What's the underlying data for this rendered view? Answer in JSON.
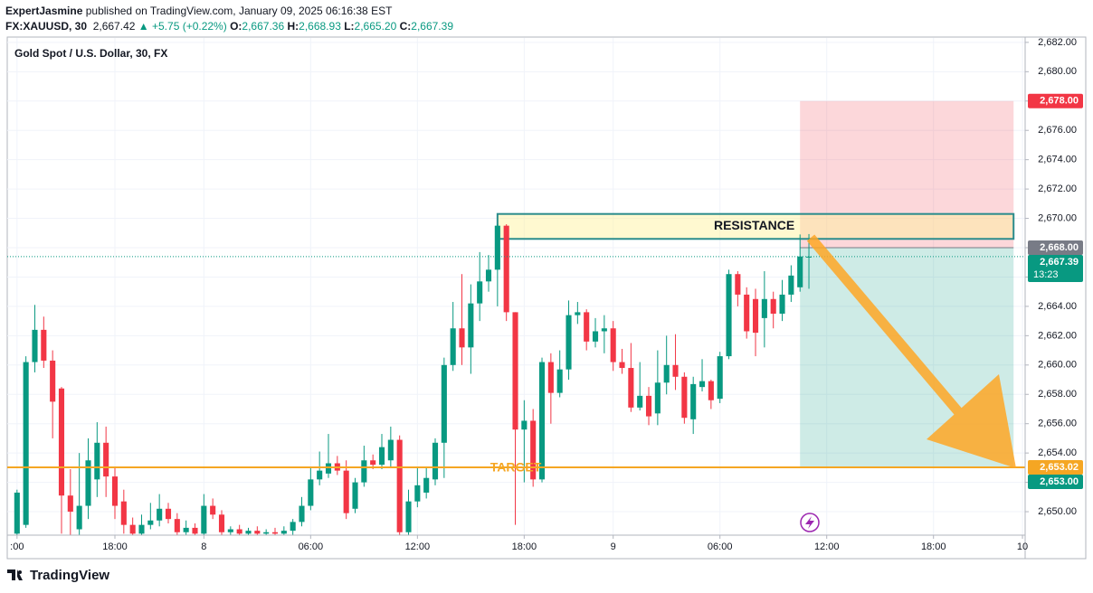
{
  "header": {
    "author": "ExpertJasmine",
    "published": "published on TradingView.com, January 09, 2025 06:16:38 EST",
    "symbol": "FX:XAUUSD, 30",
    "price": "2,667.42",
    "change": "+5.75 (+0.22%)",
    "ohlc": [
      {
        "label": "O:",
        "value": "2,667.36"
      },
      {
        "label": "H:",
        "value": "2,668.93"
      },
      {
        "label": "L:",
        "value": "2,665.20"
      },
      {
        "label": "C:",
        "value": "2,667.39"
      }
    ]
  },
  "logo": "TradingView",
  "chart_data": {
    "type": "candlestick",
    "title": "Gold Spot / U.S. Dollar, 30, FX",
    "up_color": "#089981",
    "down_color": "#f23645",
    "open": [
      2648.5,
      2649.1,
      2660.2,
      2662.4,
      2660.3,
      2658.4,
      2651.1,
      2648.8,
      2650.4,
      2652.2,
      2654.7,
      2652.4,
      2650.7,
      2649.1,
      2648.5,
      2649.1,
      2649.4,
      2650.2,
      2649.5,
      2648.6,
      2648.9,
      2648.5,
      2650.4,
      2649.8,
      2648.6,
      2648.8,
      2648.5,
      2648.7,
      2648.5,
      2648.6,
      2648.5,
      2648.7,
      2649.3,
      2650.4,
      2652.2,
      2652.6,
      2653.3,
      2652.8,
      2650.2,
      2652.0,
      2653.5,
      2653.2,
      2653.5,
      2654.9,
      2648.6,
      2650.7,
      2651.3,
      2652.2,
      2654.7,
      2660.0,
      2662.5,
      2661.2,
      2664.2,
      2665.7,
      2666.5,
      2669.5,
      2663.6,
      2655.6,
      2656.2,
      2652.2,
      2660.2,
      2658.1,
      2659.7,
      2663.4,
      2663.6,
      2661.6,
      2662.3,
      2662.5,
      2660.2,
      2659.8,
      2657.1,
      2657.9,
      2656.7,
      2658.8,
      2660.0,
      2659.2,
      2656.3,
      2658.5,
      2658.9,
      2657.7,
      2660.6,
      2666.2,
      2664.8,
      2664.5,
      2663.2,
      2664.5,
      2663.5,
      2664.8,
      2665.3,
      2667.36
    ],
    "high": [
      2651.5,
      2660.6,
      2664.1,
      2663.3,
      2661.0,
      2658.5,
      2652.9,
      2654.0,
      2655.0,
      2656.1,
      2655.8,
      2653.0,
      2651.5,
      2649.6,
      2649.8,
      2650.6,
      2651.2,
      2650.6,
      2649.9,
      2649.4,
      2649.2,
      2651.2,
      2650.9,
      2650.1,
      2649.0,
      2649.1,
      2648.9,
      2649.0,
      2648.8,
      2648.9,
      2649.0,
      2649.5,
      2651.0,
      2653.0,
      2654.1,
      2655.3,
      2653.8,
      2653.5,
      2652.3,
      2654.5,
      2653.9,
      2655.3,
      2655.8,
      2655.2,
      2651.5,
      2653.0,
      2653.0,
      2655.0,
      2660.5,
      2664.3,
      2666.2,
      2665.5,
      2667.7,
      2667.5,
      2669.6,
      2669.6,
      2663.6,
      2657.6,
      2657.0,
      2660.5,
      2660.8,
      2661.0,
      2664.4,
      2664.3,
      2663.8,
      2663.2,
      2663.4,
      2663.0,
      2661.1,
      2661.5,
      2660.2,
      2658.5,
      2661.0,
      2662.0,
      2662.1,
      2659.5,
      2659.2,
      2660.4,
      2659.0,
      2660.9,
      2666.5,
      2666.4,
      2665.3,
      2665.2,
      2666.4,
      2665.0,
      2665.8,
      2666.8,
      2668.9,
      2668.93
    ],
    "low": [
      2648.4,
      2648.9,
      2659.5,
      2659.8,
      2655.0,
      2648.5,
      2648.4,
      2648.4,
      2649.5,
      2651.0,
      2651.0,
      2649.5,
      2648.5,
      2648.4,
      2648.4,
      2648.8,
      2649.0,
      2649.2,
      2648.4,
      2648.4,
      2648.4,
      2648.4,
      2649.5,
      2648.4,
      2648.4,
      2648.4,
      2648.4,
      2648.4,
      2648.4,
      2648.4,
      2648.4,
      2648.4,
      2649.0,
      2650.1,
      2651.8,
      2652.3,
      2652.5,
      2649.5,
      2649.9,
      2651.7,
      2652.9,
      2652.9,
      2653.0,
      2648.4,
      2648.4,
      2650.3,
      2650.9,
      2651.8,
      2652.3,
      2659.6,
      2660.0,
      2659.4,
      2663.0,
      2665.0,
      2664.0,
      2663.0,
      2649.1,
      2652.0,
      2651.7,
      2652.0,
      2656.0,
      2657.8,
      2659.0,
      2662.8,
      2661.0,
      2661.2,
      2660.8,
      2659.6,
      2659.4,
      2656.8,
      2656.9,
      2655.9,
      2655.9,
      2658.0,
      2658.3,
      2656.0,
      2655.3,
      2658.2,
      2657.0,
      2657.4,
      2660.4,
      2664.0,
      2661.8,
      2660.6,
      2661.2,
      2662.5,
      2663.0,
      2664.3,
      2665.0,
      2665.2
    ],
    "close": [
      2651.3,
      2660.2,
      2662.4,
      2660.3,
      2657.5,
      2651.1,
      2650.0,
      2650.4,
      2653.5,
      2654.7,
      2652.4,
      2650.4,
      2649.1,
      2648.5,
      2649.1,
      2649.4,
      2650.2,
      2649.5,
      2648.6,
      2648.9,
      2648.5,
      2650.4,
      2649.8,
      2648.6,
      2648.8,
      2648.5,
      2648.7,
      2648.5,
      2648.6,
      2648.5,
      2648.7,
      2649.3,
      2650.4,
      2652.2,
      2652.8,
      2653.3,
      2652.8,
      2649.9,
      2652.0,
      2653.5,
      2653.2,
      2654.4,
      2654.9,
      2648.6,
      2650.7,
      2651.8,
      2652.3,
      2654.7,
      2660.0,
      2662.5,
      2661.2,
      2664.2,
      2665.7,
      2666.5,
      2669.5,
      2663.6,
      2655.6,
      2656.2,
      2652.2,
      2660.2,
      2658.1,
      2659.7,
      2663.4,
      2663.6,
      2661.6,
      2662.3,
      2662.5,
      2660.2,
      2659.8,
      2657.1,
      2657.9,
      2656.5,
      2658.8,
      2660.0,
      2659.2,
      2656.4,
      2658.7,
      2658.9,
      2657.6,
      2660.6,
      2666.2,
      2664.8,
      2662.3,
      2662.2,
      2664.5,
      2663.5,
      2664.8,
      2666.1,
      2667.4,
      2667.39
    ],
    "xlim": [
      -1.1,
      113.3
    ],
    "xticks": [
      {
        "value": 0,
        "label": ":00"
      },
      {
        "value": 11,
        "label": "18:00"
      },
      {
        "value": 21,
        "label": "8"
      },
      {
        "value": 33,
        "label": "06:00"
      },
      {
        "value": 45,
        "label": "12:00"
      },
      {
        "value": 57,
        "label": "18:00"
      },
      {
        "value": 67,
        "label": "9"
      },
      {
        "value": 79,
        "label": "06:00"
      },
      {
        "value": 91,
        "label": "12:00"
      },
      {
        "value": 103,
        "label": "18:00"
      },
      {
        "value": 113,
        "label": "10"
      }
    ],
    "ylim": [
      2648.4,
      2682.3
    ],
    "yticks": [
      {
        "value": 2650,
        "label": "2,650.00"
      },
      {
        "value": 2652,
        "label": "2,652.00"
      },
      {
        "value": 2654,
        "label": "2,654.00"
      },
      {
        "value": 2656,
        "label": "2,656.00"
      },
      {
        "value": 2658,
        "label": "2,658.00"
      },
      {
        "value": 2660,
        "label": "2,660.00"
      },
      {
        "value": 2662,
        "label": "2,662.00"
      },
      {
        "value": 2664,
        "label": "2,664.00"
      },
      {
        "value": 2666,
        "label": "2,666.00"
      },
      {
        "value": 2668,
        "label": "2,668.00"
      },
      {
        "value": 2670,
        "label": "2,670.00"
      },
      {
        "value": 2672,
        "label": "2,672.00"
      },
      {
        "value": 2674,
        "label": "2,674.00"
      },
      {
        "value": 2676,
        "label": "2,676.00"
      },
      {
        "value": 2678,
        "label": "2,678.00"
      },
      {
        "value": 2680,
        "label": "2,680.00"
      },
      {
        "value": 2682,
        "label": "2,682.00"
      }
    ],
    "grid": true,
    "resistance": {
      "label": "RESISTANCE",
      "top": 2670.3,
      "bottom": 2668.6,
      "start": 54,
      "end": 112
    },
    "target": {
      "label": "TARGET",
      "value": 2653.02,
      "color": "#f5a623"
    },
    "position": {
      "start": 88,
      "end": 112,
      "stop": 2678,
      "entry": 2668,
      "take_profit": 2653
    },
    "last_price": 2667.39,
    "price_labels": [
      {
        "value": 2678,
        "label": "2,678.00",
        "color": "#f23645"
      },
      {
        "value": 2668,
        "label": "2,668.00",
        "color": "#787b86"
      },
      {
        "value": 2667.39,
        "label": "2,667.39",
        "color": "#089981",
        "countdown": "13:23"
      },
      {
        "value": 2653.02,
        "label": "2,653.02",
        "color": "#f5a623"
      },
      {
        "value": 2653,
        "label": "2,653.00",
        "color": "#089981"
      }
    ]
  }
}
